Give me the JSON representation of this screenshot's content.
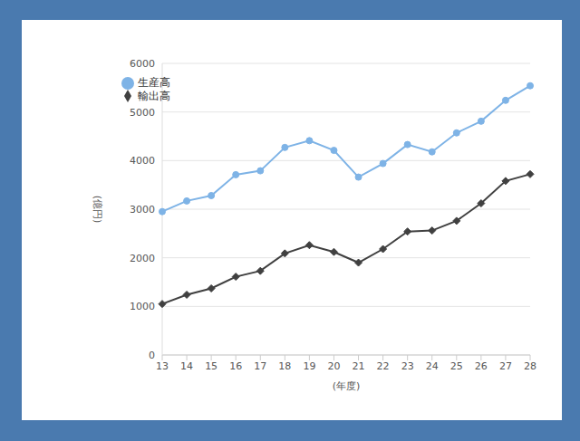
{
  "chart_data": {
    "type": "line",
    "x_label": "(年度)",
    "y_label": "(億円)",
    "categories": [
      "13",
      "14",
      "15",
      "16",
      "17",
      "18",
      "19",
      "20",
      "21",
      "22",
      "23",
      "24",
      "25",
      "26",
      "27",
      "28"
    ],
    "series": [
      {
        "name": "生産高",
        "color": "#7eb3e6",
        "marker": "circle",
        "values": [
          2950,
          3170,
          3280,
          3710,
          3790,
          4270,
          4410,
          4210,
          3660,
          3940,
          4330,
          4180,
          4570,
          4810,
          5240,
          5540
        ]
      },
      {
        "name": "輸出高",
        "color": "#404040",
        "marker": "diamond",
        "values": [
          1050,
          1240,
          1370,
          1610,
          1730,
          2090,
          2260,
          2120,
          1900,
          2180,
          2540,
          2560,
          2760,
          3120,
          3580,
          3720
        ]
      }
    ],
    "ylim": [
      0,
      6000
    ],
    "yticks": [
      0,
      1000,
      2000,
      3000,
      4000,
      5000,
      6000
    ],
    "grid": true,
    "legend": "upper left"
  }
}
